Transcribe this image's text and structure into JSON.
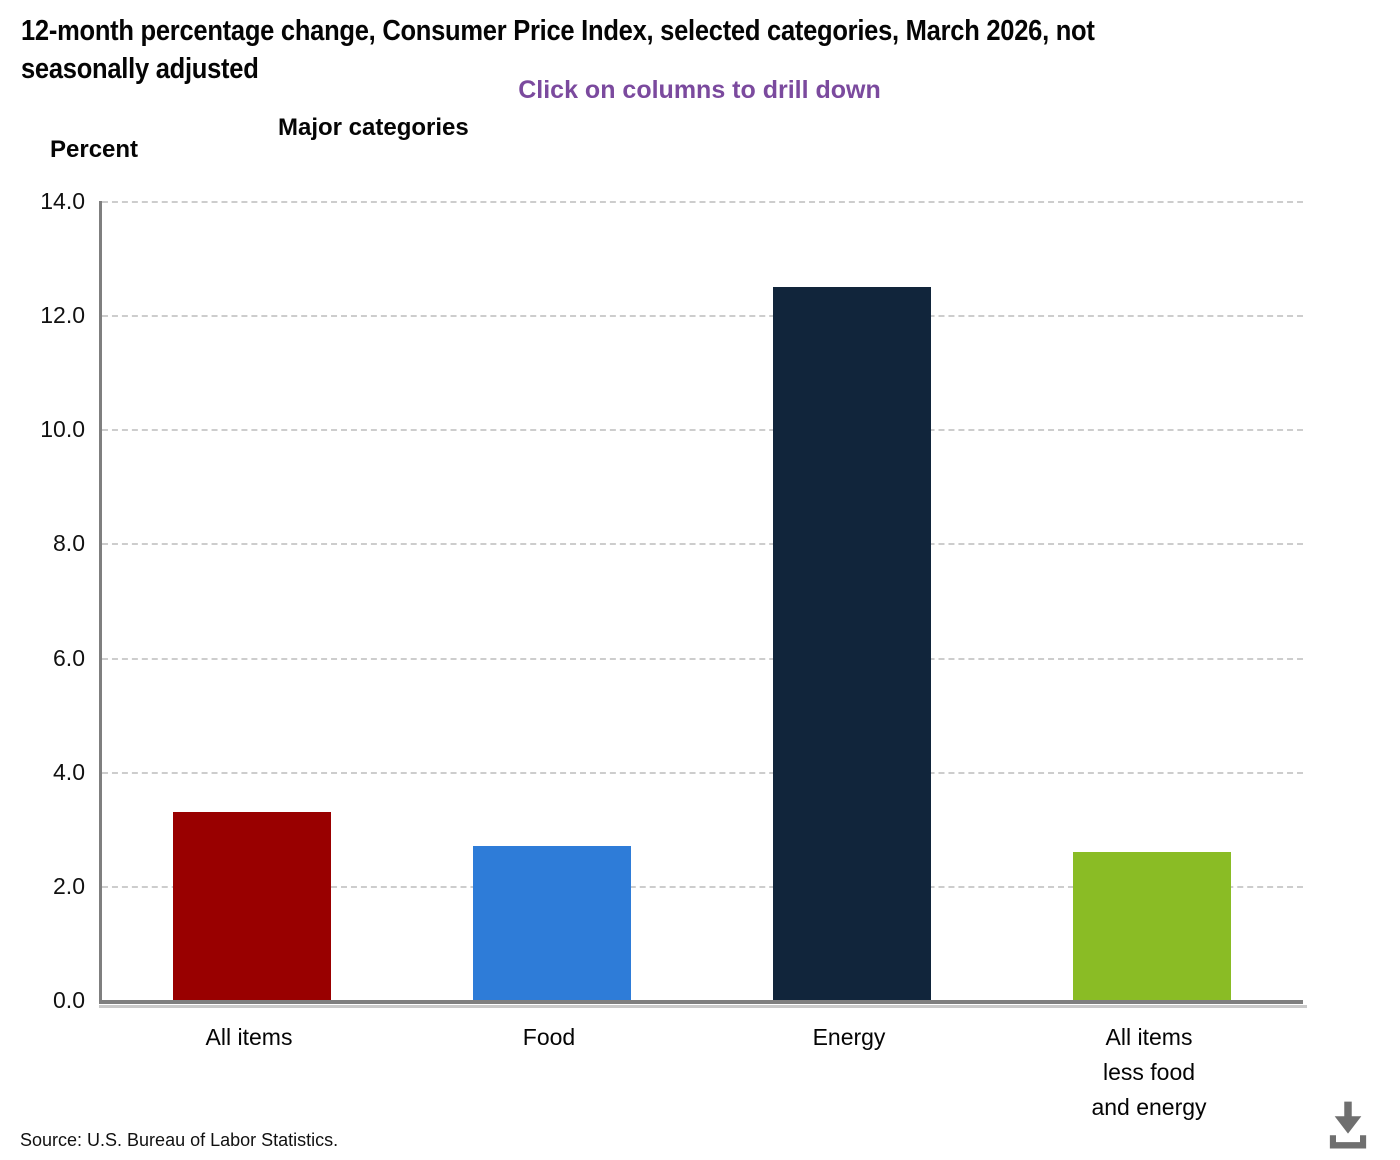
{
  "page": {
    "title_line1": "12-month percentage change, Consumer Price Index, selected categories, March 2026, not",
    "title_line2": "seasonally adjusted",
    "subtitle": "Click on columns to drill down",
    "category_axis_label": "Major categories",
    "value_axis_label": "Percent",
    "source": "Source: U.S. Bureau of Labor Statistics.",
    "accent_colors": {
      "subtitle_purple": "#7b4a9e",
      "axis_gray": "#7f7f7f",
      "gridline_gray": "#cdcdcd",
      "download_icon_gray": "#6f6f6f"
    }
  },
  "chart_data": {
    "type": "bar",
    "title": "12-month percentage change, Consumer Price Index, selected categories, March 2026, not seasonally adjusted",
    "subtitle": "Click on columns to drill down",
    "xlabel": "Major categories",
    "ylabel": "Percent",
    "ylim": [
      0,
      14
    ],
    "ytick_step": 2,
    "grid": "horizontal-dashed",
    "legend": "none",
    "categories": [
      "All items",
      "Food",
      "Energy",
      "All items less food and energy"
    ],
    "category_label_lines": [
      [
        "All items"
      ],
      [
        "Food"
      ],
      [
        "Energy"
      ],
      [
        "All items",
        "less food",
        "and energy"
      ]
    ],
    "values": [
      3.3,
      2.7,
      12.5,
      2.6
    ],
    "colors": [
      "#990000",
      "#2e7cd8",
      "#11253b",
      "#8abc25"
    ],
    "interaction_hint": "Click on columns to drill down"
  }
}
